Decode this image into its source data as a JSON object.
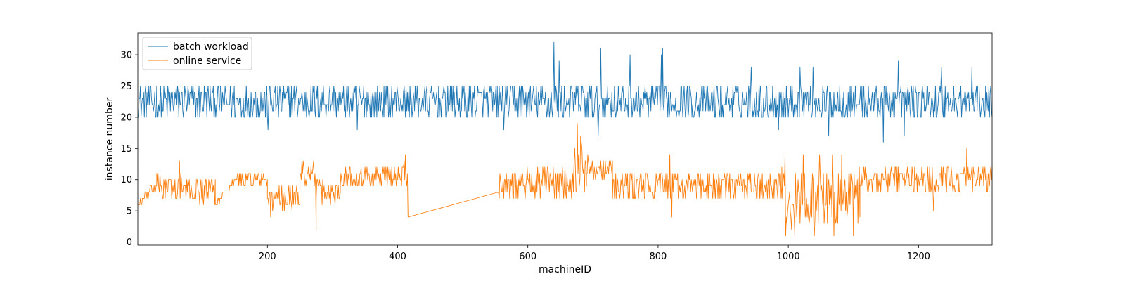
{
  "chart_data": {
    "type": "line",
    "title": "",
    "xlabel": "machineID",
    "ylabel": "instance number",
    "xlim": [
      1,
      1313
    ],
    "ylim": [
      -0.5,
      33.5
    ],
    "xticks": [
      200,
      400,
      600,
      800,
      1000,
      1200
    ],
    "yticks": [
      0,
      5,
      10,
      15,
      20,
      25,
      30
    ],
    "grid": false,
    "legend": "top-left",
    "series": [
      {
        "name": "batch workload",
        "color": "#1f77b4",
        "segments": [
          {
            "x_start": 1,
            "x_end": 1313,
            "base": 22.5,
            "jitter": 5,
            "n": 1313
          }
        ],
        "peaks": [
          [
            640,
            32
          ],
          [
            712,
            31
          ],
          [
            757,
            30
          ],
          [
            807,
            31
          ],
          [
            805,
            30
          ],
          [
            648,
            29
          ],
          [
            1169,
            29
          ],
          [
            1235,
            28
          ],
          [
            1282,
            28
          ],
          [
            1018,
            28
          ],
          [
            1038,
            28
          ],
          [
            943,
            28
          ]
        ],
        "troughs": [
          [
            1146,
            16
          ],
          [
            708,
            17
          ],
          [
            1062,
            17
          ],
          [
            1178,
            17
          ],
          [
            338,
            18
          ],
          [
            201,
            18
          ],
          [
            563,
            18
          ],
          [
            985,
            18
          ]
        ]
      },
      {
        "name": "online service",
        "color": "#ff7f0e",
        "segments": [
          {
            "x_start": 1,
            "x_end": 30,
            "from": 6,
            "to": 9,
            "jitter": 1.5
          },
          {
            "x_start": 30,
            "x_end": 120,
            "from": 9,
            "to": 8,
            "jitter": 3.5
          },
          {
            "x_start": 120,
            "x_end": 155,
            "from": 6,
            "to": 10.5,
            "jitter": 0.5
          },
          {
            "x_start": 155,
            "x_end": 200,
            "from": 10,
            "to": 10,
            "jitter": 2.5
          },
          {
            "x_start": 200,
            "x_end": 250,
            "from": 7,
            "to": 7,
            "jitter": 3
          },
          {
            "x_start": 250,
            "x_end": 275,
            "from": 11,
            "to": 11,
            "jitter": 3
          },
          {
            "x_start": 275,
            "x_end": 312,
            "from": 8,
            "to": 8,
            "jitter": 3
          },
          {
            "x_start": 312,
            "x_end": 416,
            "from": 10.5,
            "to": 10.5,
            "jitter": 3
          },
          {
            "x_start": 416,
            "x_end": 555,
            "from": 4,
            "to": 8,
            "jitter": 0
          },
          {
            "x_start": 555,
            "x_end": 670,
            "from": 9.5,
            "to": 9.5,
            "jitter": 4
          },
          {
            "x_start": 670,
            "x_end": 690,
            "from": 12,
            "to": 12,
            "jitter": 7
          },
          {
            "x_start": 690,
            "x_end": 730,
            "from": 12,
            "to": 12,
            "jitter": 3
          },
          {
            "x_start": 730,
            "x_end": 990,
            "from": 9,
            "to": 9,
            "jitter": 4
          },
          {
            "x_start": 990,
            "x_end": 1110,
            "from": 7,
            "to": 7,
            "jitter": 8
          },
          {
            "x_start": 1110,
            "x_end": 1313,
            "from": 10,
            "to": 10,
            "jitter": 3.5
          }
        ],
        "peaks": [
          [
            676,
            19
          ],
          [
            681,
            17
          ],
          [
            1274,
            15
          ],
          [
            412,
            14
          ],
          [
            818,
            14
          ],
          [
            995,
            14
          ],
          [
            1023,
            14
          ],
          [
            1048,
            14
          ],
          [
            1068,
            14
          ],
          [
            1082,
            14
          ],
          [
            65,
            13
          ],
          [
            255,
            13
          ],
          [
            410,
            13
          ]
        ],
        "troughs": [
          [
            275,
            2
          ],
          [
            996,
            1
          ],
          [
            1010,
            1
          ],
          [
            1040,
            1
          ],
          [
            1070,
            1
          ],
          [
            1100,
            1
          ],
          [
            416,
            4
          ],
          [
            205,
            4
          ],
          [
            821,
            4
          ],
          [
            1223,
            5
          ]
        ]
      }
    ]
  }
}
